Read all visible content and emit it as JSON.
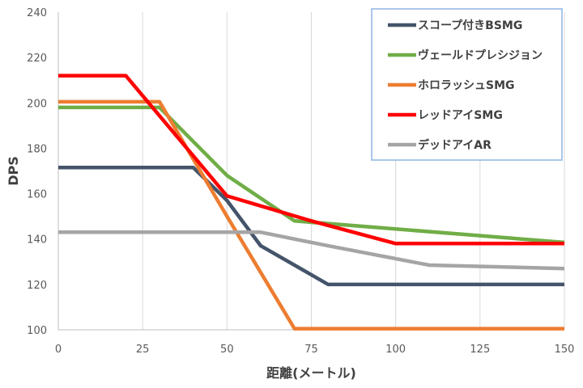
{
  "chart_data": {
    "type": "line",
    "xlabel": "距離(メートル)",
    "ylabel": "DPS",
    "xlim": [
      0,
      150
    ],
    "ylim": [
      100,
      240
    ],
    "xticks": [
      0,
      25,
      50,
      75,
      100,
      125,
      150
    ],
    "yticks": [
      100,
      120,
      140,
      160,
      180,
      200,
      220,
      240
    ],
    "grid": "vertical",
    "legend_position": "top-right",
    "series": [
      {
        "name": "スコープ付きBSMG",
        "color": "#44546a",
        "points": [
          [
            0,
            171.5
          ],
          [
            40,
            171.5
          ],
          [
            50,
            157
          ],
          [
            60,
            137
          ],
          [
            80,
            120
          ],
          [
            150,
            120
          ]
        ]
      },
      {
        "name": "ヴェールドプレシジョン",
        "color": "#70ad47",
        "points": [
          [
            0,
            198
          ],
          [
            30,
            198
          ],
          [
            50,
            168
          ],
          [
            70,
            148
          ],
          [
            150,
            138.5
          ]
        ]
      },
      {
        "name": "ホロラッシュSMG",
        "color": "#ed7d31",
        "points": [
          [
            0,
            200.5
          ],
          [
            30,
            200.5
          ],
          [
            50,
            150
          ],
          [
            70,
            100.5
          ],
          [
            150,
            100.5
          ]
        ]
      },
      {
        "name": "レッドアイSMG",
        "color": "#ff0000",
        "points": [
          [
            0,
            212
          ],
          [
            20,
            212
          ],
          [
            50,
            159
          ],
          [
            75,
            148
          ],
          [
            100,
            138
          ],
          [
            150,
            138
          ]
        ]
      },
      {
        "name": "デッドアイAR",
        "color": "#a5a5a5",
        "points": [
          [
            0,
            143
          ],
          [
            60,
            143
          ],
          [
            80,
            137
          ],
          [
            110,
            128.5
          ],
          [
            150,
            127
          ]
        ]
      }
    ]
  }
}
